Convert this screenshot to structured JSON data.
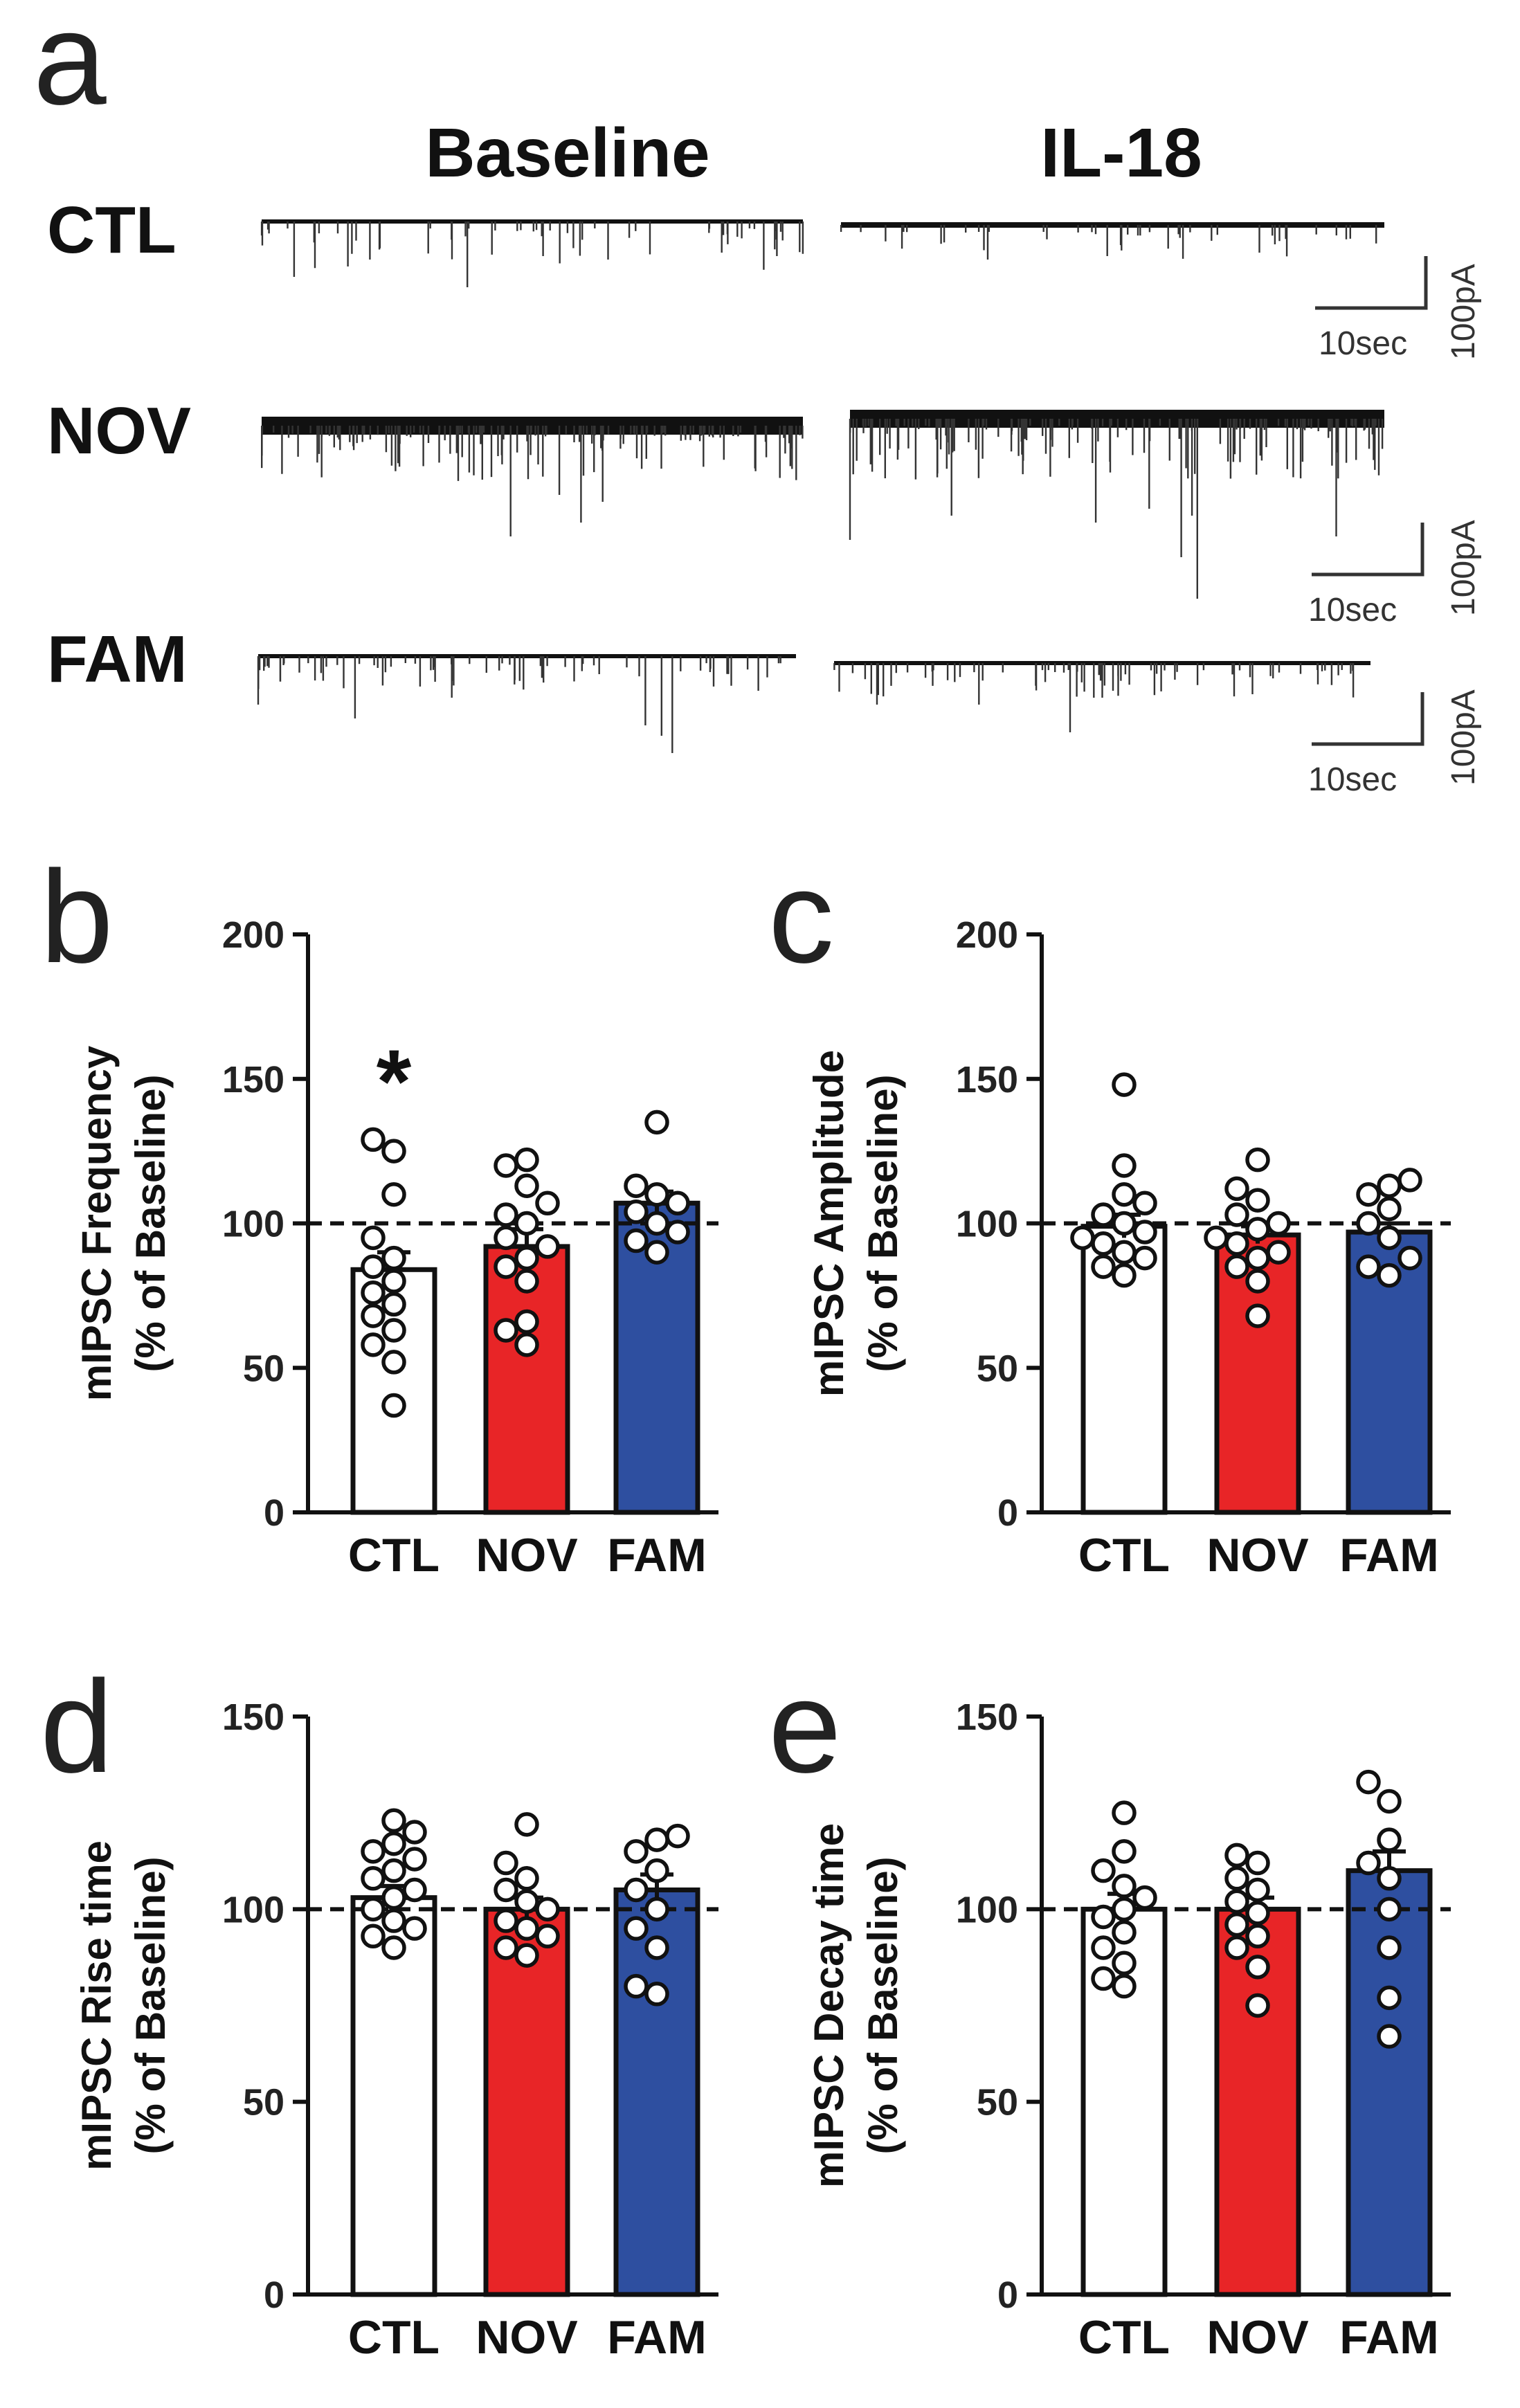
{
  "traces": {
    "panel_label": "a",
    "columns": [
      "Baseline",
      "IL-18"
    ],
    "rows": [
      {
        "label": "CTL",
        "time_scale": "10sec",
        "current_scale": "100pA"
      },
      {
        "label": "NOV",
        "time_scale": "10sec",
        "current_scale": "100pA"
      },
      {
        "label": "FAM",
        "time_scale": "10sec",
        "current_scale": "100pA"
      }
    ]
  },
  "colors": {
    "CTL": "#ffffff",
    "NOV": "#e82527",
    "FAM": "#2e4fa0",
    "ink": "#111111"
  },
  "chart_data": [
    {
      "panel": "b",
      "type": "bar",
      "title": "",
      "ylabel_line1": "mIPSC Frequency",
      "ylabel_line2": "(% of Baseline)",
      "categories": [
        "CTL",
        "NOV",
        "FAM"
      ],
      "values": [
        84,
        92,
        107
      ],
      "sem": [
        6,
        6,
        4
      ],
      "ylim": [
        0,
        200
      ],
      "yticks": [
        "0",
        "50",
        "100",
        "150",
        "200"
      ],
      "ytick_values": [
        0,
        50,
        100,
        150,
        200
      ],
      "reference_line": 100,
      "annotation": {
        "text": "*",
        "category": "CTL"
      },
      "points": [
        [
          37,
          52,
          58,
          63,
          68,
          72,
          76,
          80,
          85,
          88,
          95,
          110,
          125,
          129
        ],
        [
          58,
          63,
          66,
          80,
          85,
          88,
          92,
          95,
          100,
          103,
          107,
          113,
          120,
          122
        ],
        [
          90,
          94,
          97,
          100,
          104,
          107,
          110,
          113,
          135
        ]
      ]
    },
    {
      "panel": "c",
      "type": "bar",
      "title": "",
      "ylabel_line1": "mIPSC Amplitude",
      "ylabel_line2": "(% of Baseline)",
      "categories": [
        "CTL",
        "NOV",
        "FAM"
      ],
      "values": [
        99,
        96,
        97
      ],
      "sem": [
        4,
        3,
        3
      ],
      "ylim": [
        0,
        200
      ],
      "yticks": [
        "0",
        "50",
        "100",
        "150",
        "200"
      ],
      "ytick_values": [
        0,
        50,
        100,
        150,
        200
      ],
      "reference_line": 100,
      "points": [
        [
          82,
          85,
          88,
          90,
          93,
          95,
          97,
          100,
          103,
          107,
          110,
          120,
          148
        ],
        [
          68,
          80,
          85,
          88,
          90,
          93,
          95,
          98,
          100,
          103,
          108,
          112,
          122
        ],
        [
          82,
          85,
          88,
          95,
          100,
          105,
          110,
          113,
          115
        ]
      ]
    },
    {
      "panel": "d",
      "type": "bar",
      "title": "",
      "ylabel_line1": "mIPSC Rise time",
      "ylabel_line2": "(% of Baseline)",
      "categories": [
        "CTL",
        "NOV",
        "FAM"
      ],
      "values": [
        103,
        100,
        105
      ],
      "sem": [
        3,
        3,
        4
      ],
      "ylim": [
        0,
        150
      ],
      "yticks": [
        "0",
        "50",
        "100",
        "150"
      ],
      "ytick_values": [
        0,
        50,
        100,
        150
      ],
      "reference_line": 100,
      "points": [
        [
          90,
          93,
          95,
          97,
          100,
          103,
          105,
          108,
          110,
          113,
          115,
          117,
          120,
          123
        ],
        [
          88,
          90,
          93,
          95,
          97,
          100,
          102,
          105,
          108,
          112,
          122
        ],
        [
          78,
          80,
          90,
          95,
          100,
          105,
          110,
          115,
          118,
          119
        ]
      ]
    },
    {
      "panel": "e",
      "type": "bar",
      "title": "",
      "ylabel_line1": "mIPSC Decay time",
      "ylabel_line2": "(% of Baseline)",
      "categories": [
        "CTL",
        "NOV",
        "FAM"
      ],
      "values": [
        100,
        100,
        110
      ],
      "sem": [
        4,
        3,
        5
      ],
      "ylim": [
        0,
        150
      ],
      "yticks": [
        "0",
        "50",
        "100",
        "150"
      ],
      "ytick_values": [
        0,
        50,
        100,
        150
      ],
      "reference_line": 100,
      "points": [
        [
          80,
          82,
          86,
          90,
          94,
          98,
          100,
          103,
          106,
          110,
          115,
          125
        ],
        [
          75,
          85,
          90,
          93,
          96,
          99,
          102,
          105,
          108,
          112,
          114
        ],
        [
          67,
          77,
          90,
          100,
          108,
          112,
          118,
          128,
          133
        ]
      ]
    }
  ]
}
